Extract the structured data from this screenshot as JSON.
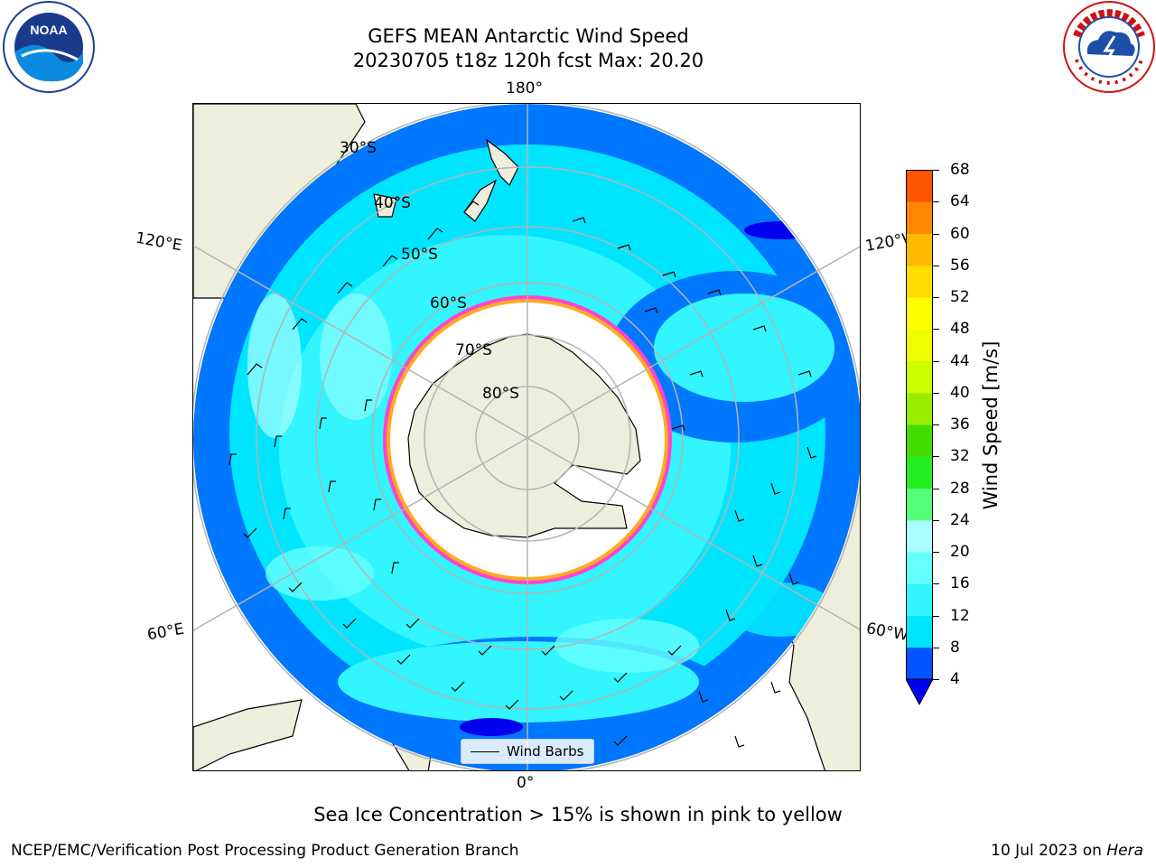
{
  "title": {
    "line1": "GEFS MEAN Antarctic Wind Speed",
    "line2": "20230705 t18z 120h fcst   Max: 20.20"
  },
  "logos": {
    "noaa": {
      "text": "NOAA",
      "ring_text": "NATIONAL OCEANIC AND ATMOSPHERIC ADMINISTRATION · U.S. DEPARTMENT OF COMMERCE"
    },
    "nws": {
      "ring_text": "NATIONAL WEATHER SERVICE"
    }
  },
  "map": {
    "projection": "South Polar Stereographic",
    "longitude_labels": [
      "180°",
      "120°E",
      "120°W",
      "60°E",
      "60°W",
      "0°"
    ],
    "latitude_labels": [
      "30°S",
      "40°S",
      "50°S",
      "60°S",
      "70°S",
      "80°S"
    ],
    "legend": {
      "label": "Wind Barbs"
    }
  },
  "colorbar": {
    "label": "Wind Speed [m/s]",
    "ticks": [
      "4",
      "8",
      "12",
      "16",
      "20",
      "24",
      "28",
      "32",
      "36",
      "40",
      "44",
      "48",
      "52",
      "56",
      "60",
      "64",
      "68"
    ],
    "colors": [
      "#0055ff",
      "#00e5ff",
      "#33f5ff",
      "#66ffff",
      "#aaffff",
      "#55ff77",
      "#22ee22",
      "#44dd00",
      "#99ee00",
      "#ccff00",
      "#eeff00",
      "#ffff00",
      "#ffdd00",
      "#ffbb00",
      "#ff8800",
      "#ff5500",
      "#ff2200",
      "#ff0000"
    ],
    "extend_color": "#0000ee"
  },
  "caption": "Sea Ice Concentration > 15% is shown in pink to yellow",
  "footer": {
    "left": "NCEP/EMC/Verification Post Processing Product Generation Branch",
    "right_date": "10 Jul 2023 on ",
    "right_host": "Hera"
  }
}
